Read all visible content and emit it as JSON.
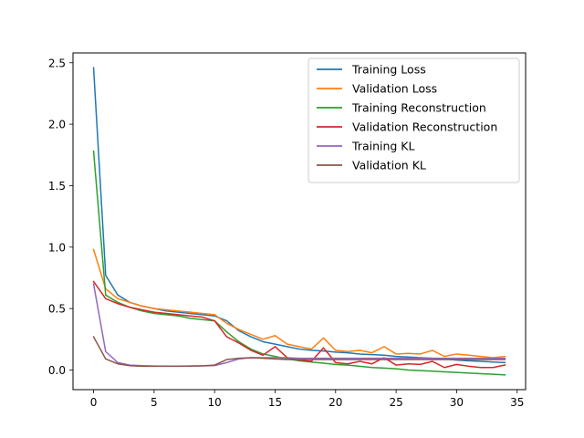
{
  "chart_data": {
    "type": "line",
    "title": "",
    "xlabel": "",
    "ylabel": "",
    "xlim": [
      -1.7,
      35.7
    ],
    "ylim": [
      -0.16,
      2.58
    ],
    "xticks": [
      0,
      5,
      10,
      15,
      20,
      25,
      30,
      35
    ],
    "yticks": [
      0.0,
      0.5,
      1.0,
      1.5,
      2.0,
      2.5
    ],
    "xtick_labels": [
      "0",
      "5",
      "10",
      "15",
      "20",
      "25",
      "30",
      "35"
    ],
    "ytick_labels": [
      "0.0",
      "0.5",
      "1.0",
      "1.5",
      "2.0",
      "2.5"
    ],
    "grid": false,
    "legend_position": "upper right",
    "x": [
      0,
      1,
      2,
      3,
      4,
      5,
      6,
      7,
      8,
      9,
      10,
      11,
      12,
      13,
      14,
      15,
      16,
      17,
      18,
      19,
      20,
      21,
      22,
      23,
      24,
      25,
      26,
      27,
      28,
      29,
      30,
      31,
      32,
      33,
      34
    ],
    "series": [
      {
        "name": "Training Loss",
        "color": "#1f77b4",
        "values": [
          2.46,
          0.77,
          0.61,
          0.55,
          0.52,
          0.5,
          0.48,
          0.47,
          0.46,
          0.45,
          0.44,
          0.4,
          0.32,
          0.27,
          0.23,
          0.21,
          0.19,
          0.17,
          0.16,
          0.155,
          0.145,
          0.14,
          0.13,
          0.125,
          0.12,
          0.11,
          0.105,
          0.1,
          0.095,
          0.09,
          0.08,
          0.075,
          0.07,
          0.065,
          0.06
        ]
      },
      {
        "name": "Validation Loss",
        "color": "#ff7f0e",
        "values": [
          0.98,
          0.66,
          0.58,
          0.55,
          0.52,
          0.5,
          0.49,
          0.48,
          0.47,
          0.46,
          0.45,
          0.38,
          0.33,
          0.29,
          0.25,
          0.28,
          0.21,
          0.19,
          0.17,
          0.26,
          0.16,
          0.15,
          0.16,
          0.14,
          0.19,
          0.13,
          0.135,
          0.13,
          0.16,
          0.11,
          0.13,
          0.12,
          0.11,
          0.1,
          0.11
        ]
      },
      {
        "name": "Training Reconstruction",
        "color": "#2ca02c",
        "values": [
          1.78,
          0.61,
          0.55,
          0.51,
          0.48,
          0.46,
          0.45,
          0.44,
          0.42,
          0.41,
          0.4,
          0.31,
          0.23,
          0.17,
          0.13,
          0.11,
          0.09,
          0.075,
          0.065,
          0.055,
          0.045,
          0.04,
          0.03,
          0.02,
          0.015,
          0.01,
          0.0,
          -0.005,
          -0.01,
          -0.015,
          -0.02,
          -0.025,
          -0.03,
          -0.035,
          -0.04
        ]
      },
      {
        "name": "Validation Reconstruction",
        "color": "#d62728",
        "values": [
          0.72,
          0.58,
          0.54,
          0.51,
          0.49,
          0.47,
          0.46,
          0.45,
          0.44,
          0.43,
          0.4,
          0.27,
          0.22,
          0.16,
          0.12,
          0.19,
          0.1,
          0.08,
          0.07,
          0.18,
          0.06,
          0.05,
          0.07,
          0.05,
          0.1,
          0.04,
          0.05,
          0.045,
          0.07,
          0.02,
          0.045,
          0.03,
          0.02,
          0.02,
          0.04
        ]
      },
      {
        "name": "Training KL",
        "color": "#9467bd",
        "values": [
          0.7,
          0.15,
          0.06,
          0.04,
          0.035,
          0.032,
          0.031,
          0.031,
          0.032,
          0.033,
          0.036,
          0.06,
          0.09,
          0.1,
          0.1,
          0.1,
          0.1,
          0.095,
          0.095,
          0.095,
          0.095,
          0.095,
          0.095,
          0.095,
          0.095,
          0.095,
          0.095,
          0.095,
          0.095,
          0.095,
          0.095,
          0.095,
          0.095,
          0.095,
          0.095
        ]
      },
      {
        "name": "Validation KL",
        "color": "#8c564b",
        "values": [
          0.27,
          0.09,
          0.05,
          0.035,
          0.03,
          0.03,
          0.03,
          0.03,
          0.032,
          0.034,
          0.04,
          0.085,
          0.095,
          0.1,
          0.095,
          0.09,
          0.085,
          0.085,
          0.085,
          0.085,
          0.085,
          0.085,
          0.085,
          0.085,
          0.085,
          0.085,
          0.085,
          0.085,
          0.085,
          0.085,
          0.085,
          0.085,
          0.085,
          0.085,
          0.085
        ]
      }
    ]
  }
}
